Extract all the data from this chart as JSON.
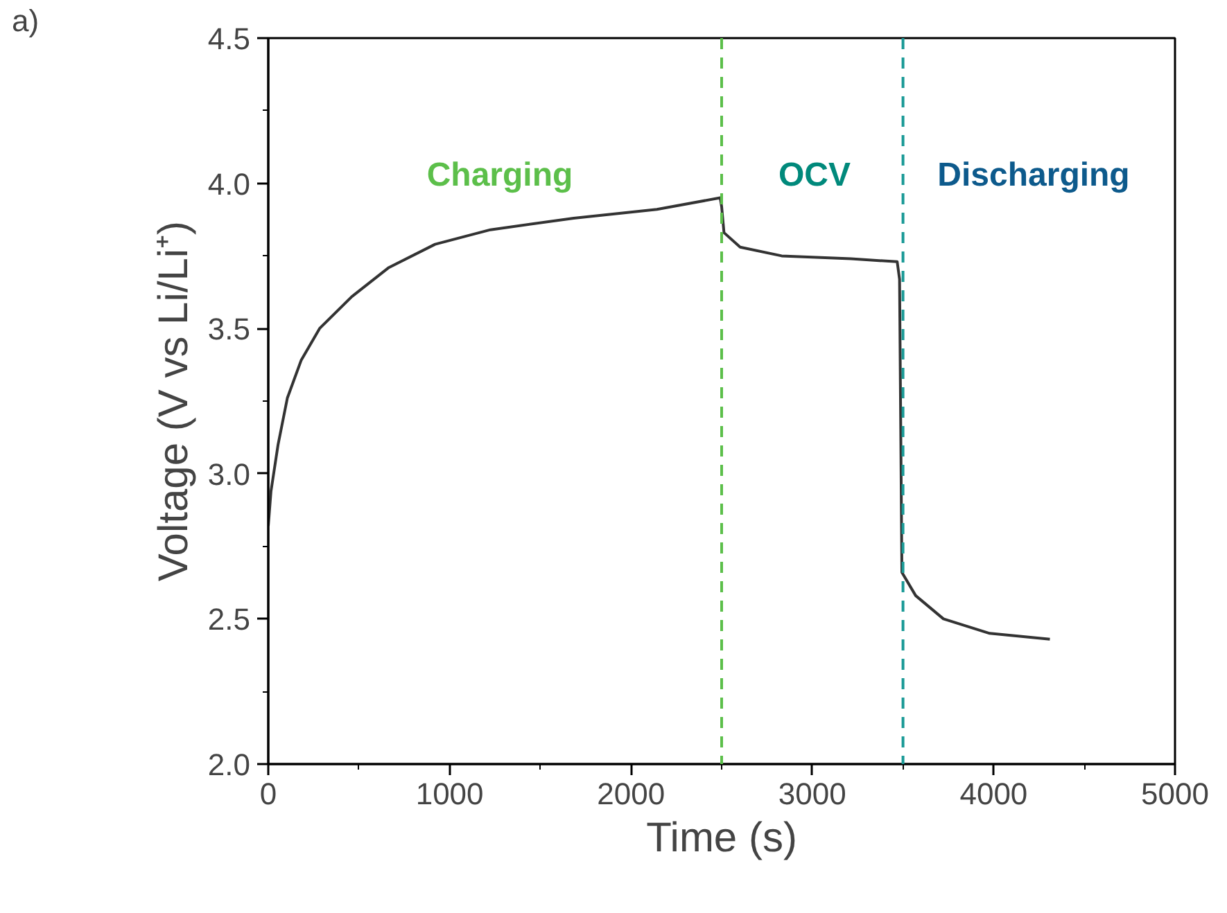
{
  "chart_data": {
    "type": "line",
    "xlabel": "Time (s)",
    "ylabel": "Voltage (V vs Li/Li⁺)",
    "xlim": [
      0,
      5000
    ],
    "xticks": [
      0,
      1000,
      2000,
      3000,
      4000,
      5000
    ],
    "ylim": [
      2.0,
      4.5
    ],
    "yticks": [
      {
        "value": 2.0,
        "label": "2.0"
      },
      {
        "value": 2.5,
        "label": "2.5"
      },
      {
        "value": 3.0,
        "label": "3.0"
      },
      {
        "value": 3.5,
        "label": "3.5"
      },
      {
        "value": 4.0,
        "label": "4.0"
      },
      {
        "value": 4.5,
        "label": "4.5"
      }
    ],
    "grid": false,
    "marker": "none",
    "line_style": "solid",
    "series": [
      {
        "color": "#333333",
        "x": [
          0,
          15,
          54,
          105,
          181,
          283,
          461,
          665,
          920,
          1225,
          1684,
          2143,
          2492,
          2500,
          2513,
          2602,
          2831,
          3213,
          3468,
          3481,
          3494,
          3570,
          3723,
          3978,
          4310
        ],
        "values": [
          2.82,
          2.94,
          3.1,
          3.26,
          3.39,
          3.5,
          3.61,
          3.71,
          3.79,
          3.84,
          3.88,
          3.91,
          3.95,
          3.92,
          3.83,
          3.78,
          3.75,
          3.74,
          3.73,
          3.67,
          2.66,
          2.58,
          2.5,
          2.45,
          2.43
        ]
      }
    ],
    "ref_lines": [
      {
        "axis": "x",
        "value": 2500,
        "color": "#5cbf4a",
        "line_style": "dashed"
      },
      {
        "axis": "x",
        "value": 3500,
        "color": "#1a9a96",
        "line_style": "dashed"
      }
    ],
    "annotations": [
      "a)",
      "Charging",
      "OCV",
      "Discharging"
    ]
  }
}
